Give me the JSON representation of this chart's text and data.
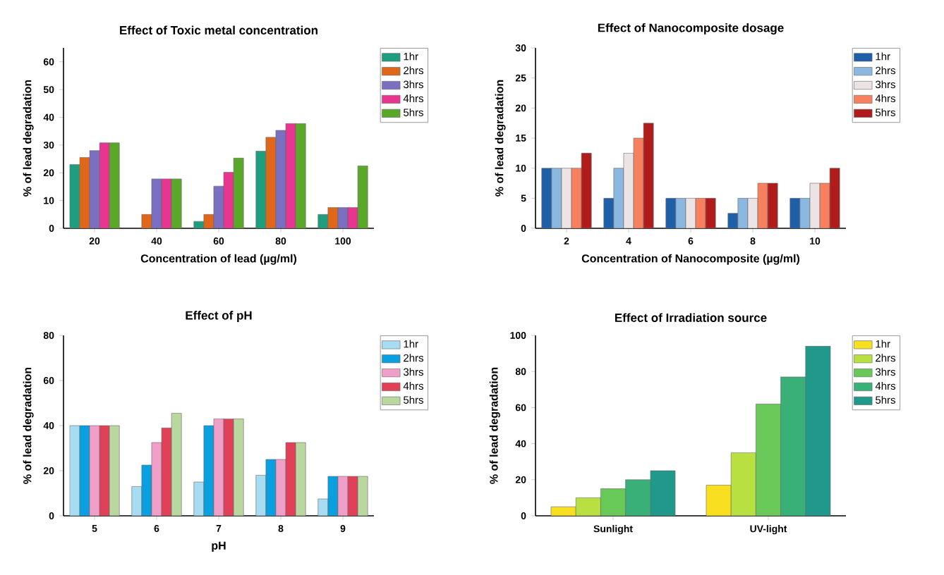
{
  "chart_data": [
    {
      "type": "bar",
      "title": "Effect of Toxic metal concentration",
      "xlabel": "Concentration of lead (µg/ml)",
      "ylabel": "% of lead degradation",
      "categories": [
        "20",
        "40",
        "60",
        "80",
        "100"
      ],
      "ylim": [
        0,
        65
      ],
      "yticks": [
        0,
        10,
        20,
        30,
        40,
        50,
        60
      ],
      "legend": "top right",
      "series": [
        {
          "name": "1hr",
          "color": "#1e9e7e",
          "values": [
            23,
            null,
            2.5,
            27.8,
            5
          ]
        },
        {
          "name": "2hrs",
          "color": "#e0661a",
          "values": [
            25.5,
            5,
            5,
            32.8,
            7.5
          ]
        },
        {
          "name": "3hrs",
          "color": "#7a6fc0",
          "values": [
            28,
            17.8,
            15.2,
            35.3,
            7.5
          ]
        },
        {
          "name": "4hrs",
          "color": "#e8358f",
          "values": [
            30.8,
            17.8,
            20.2,
            37.8,
            7.5
          ]
        },
        {
          "name": "5hrs",
          "color": "#5aa82a",
          "values": [
            30.8,
            17.8,
            25.3,
            37.8,
            22.5
          ]
        }
      ]
    },
    {
      "type": "bar",
      "title": "Effect of Nanocomposite dosage",
      "xlabel": "Concentration of Nanocomposite (µg/ml)",
      "ylabel": "% of lead degradation",
      "categories": [
        "2",
        "4",
        "6",
        "8",
        "10"
      ],
      "ylim": [
        0,
        30
      ],
      "yticks": [
        0,
        5,
        10,
        15,
        20,
        25,
        30
      ],
      "legend": "top right",
      "series": [
        {
          "name": "1hr",
          "color": "#1f5fa8",
          "values": [
            10,
            5,
            5,
            2.5,
            5
          ]
        },
        {
          "name": "2hrs",
          "color": "#8ab8e0",
          "values": [
            10,
            10,
            5,
            5,
            5
          ]
        },
        {
          "name": "3hrs",
          "color": "#ece4e4",
          "values": [
            10,
            12.5,
            5,
            5,
            7.5
          ]
        },
        {
          "name": "4hrs",
          "color": "#f7815f",
          "values": [
            10,
            15,
            5,
            7.5,
            7.5
          ]
        },
        {
          "name": "5hrs",
          "color": "#b01c1c",
          "values": [
            12.5,
            17.5,
            5,
            7.5,
            10
          ]
        }
      ]
    },
    {
      "type": "bar",
      "title": "Effect of pH",
      "xlabel": "pH",
      "ylabel": "% of lead degradation",
      "categories": [
        "5",
        "6",
        "7",
        "8",
        "9"
      ],
      "ylim": [
        0,
        80
      ],
      "yticks": [
        0,
        20,
        40,
        60,
        80
      ],
      "legend": "top right",
      "series": [
        {
          "name": "1hr",
          "color": "#a8dcf0",
          "values": [
            40,
            13,
            15,
            18,
            7.5
          ]
        },
        {
          "name": "2hrs",
          "color": "#0aa0e0",
          "values": [
            40,
            22.5,
            40,
            25,
            17.5
          ]
        },
        {
          "name": "3hrs",
          "color": "#f0a0c8",
          "values": [
            40,
            32.5,
            43,
            25,
            17.5
          ]
        },
        {
          "name": "4hrs",
          "color": "#e04058",
          "values": [
            40,
            39,
            43,
            32.5,
            17.5
          ]
        },
        {
          "name": "5hrs",
          "color": "#b8d8a0",
          "values": [
            40,
            45.5,
            43,
            32.5,
            17.5
          ]
        }
      ]
    },
    {
      "type": "bar",
      "title": "Effect of Irradiation source",
      "ylabel": "% of lead degradation",
      "categories": [
        "Sunlight",
        "UV-light"
      ],
      "ylim": [
        0,
        100
      ],
      "yticks": [
        0,
        20,
        40,
        60,
        80,
        100
      ],
      "legend": "top right",
      "series": [
        {
          "name": "1hr",
          "color": "#f8e020",
          "values": [
            5,
            17
          ]
        },
        {
          "name": "2hrs",
          "color": "#b8e040",
          "values": [
            10,
            35
          ]
        },
        {
          "name": "3hrs",
          "color": "#68c858",
          "values": [
            15,
            62
          ]
        },
        {
          "name": "4hrs",
          "color": "#38b078",
          "values": [
            20,
            77
          ]
        },
        {
          "name": "5hrs",
          "color": "#20988a",
          "values": [
            25,
            94
          ]
        }
      ]
    }
  ]
}
